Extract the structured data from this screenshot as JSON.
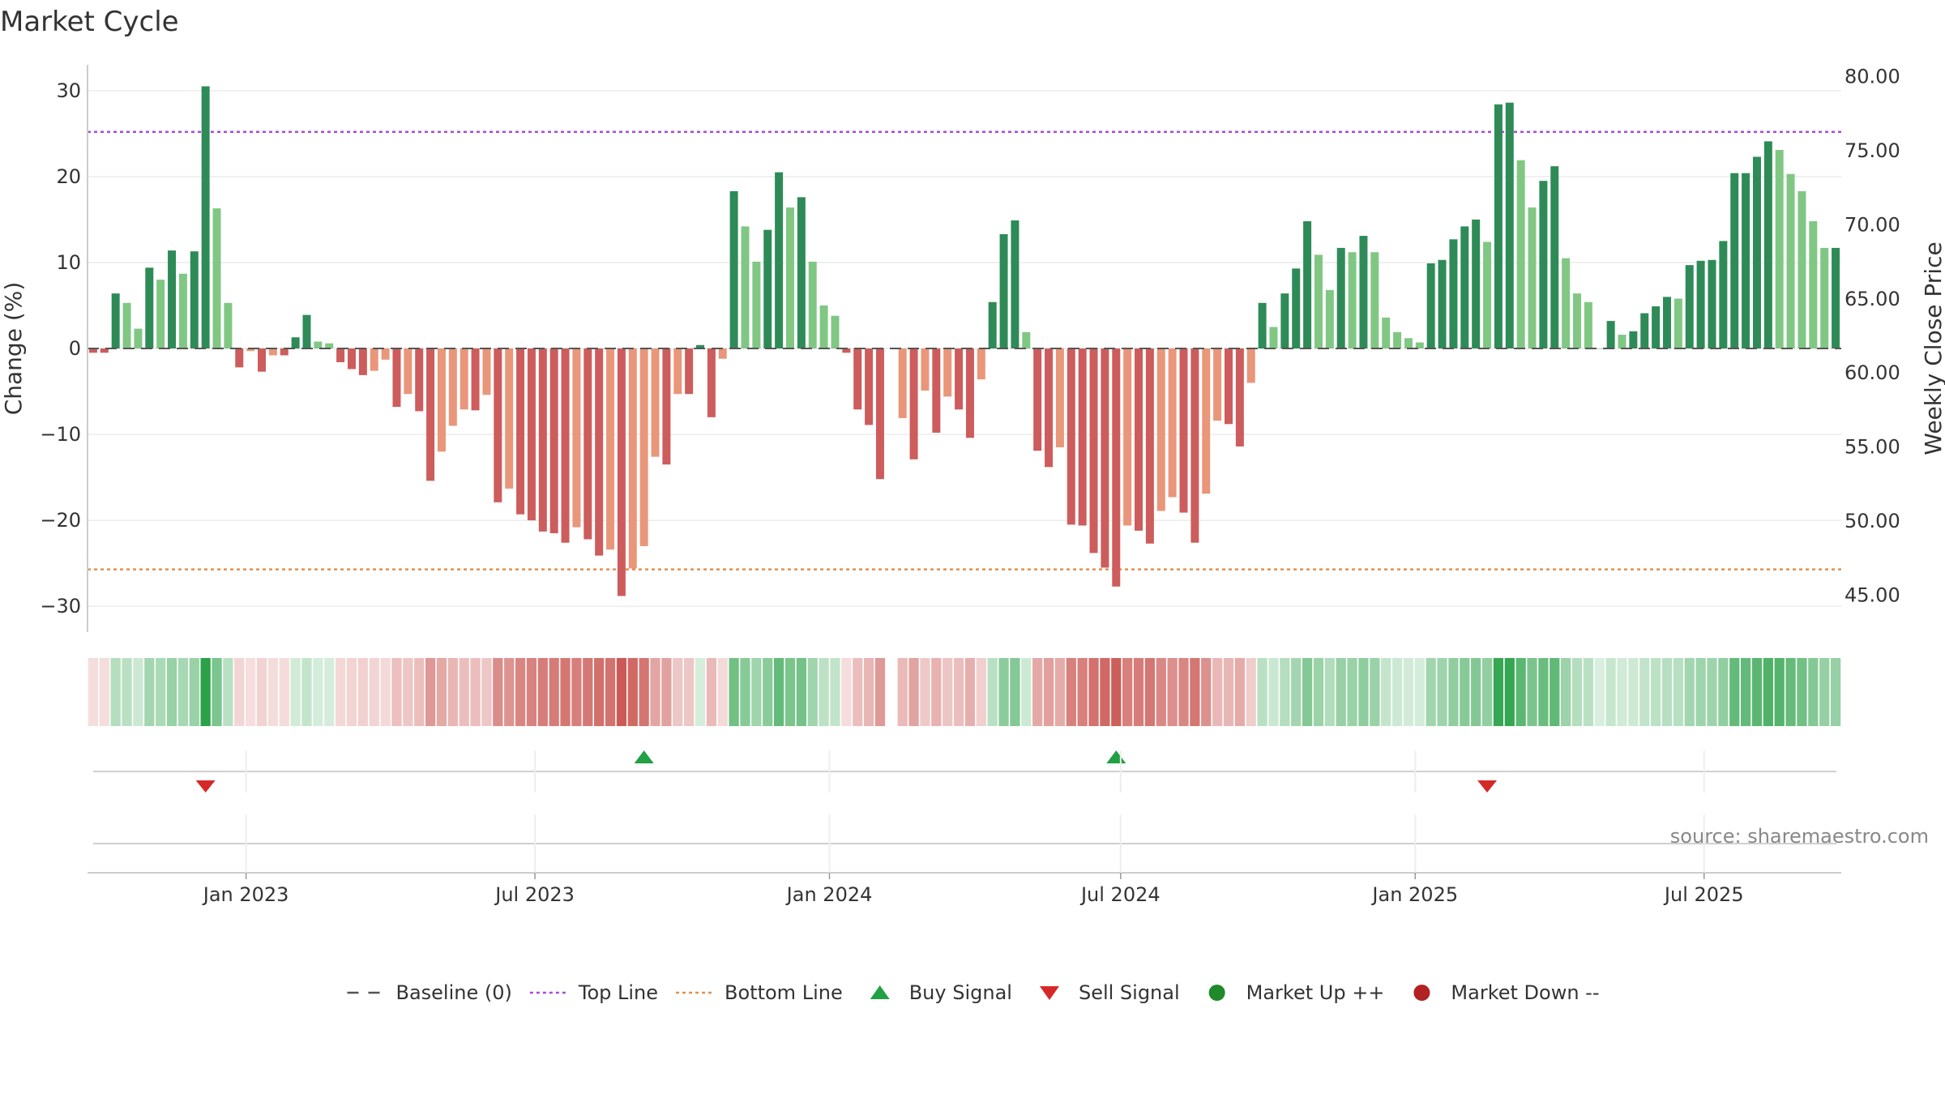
{
  "chart_data": {
    "type": "bar",
    "title": "Market Cycle",
    "ylabel": "Change (%)",
    "y2label": "Weekly Close Price",
    "ylim": [
      -33,
      33
    ],
    "y_ticks": [
      30,
      20,
      10,
      0,
      -10,
      -20,
      -30
    ],
    "y_tick_labels": [
      "30",
      "20",
      "10",
      "0",
      "−10",
      "−20",
      "−30"
    ],
    "y2lim": [
      42.5,
      80.8
    ],
    "y2_ticks": [
      80,
      75,
      70,
      65,
      60,
      55,
      50,
      45
    ],
    "y2_tick_labels": [
      "80.00",
      "75.00",
      "70.00",
      "65.00",
      "60.00",
      "55.00",
      "50.00",
      "45.00"
    ],
    "top_line": 25.2,
    "bottom_line": -25.7,
    "baseline": 0,
    "x_week_range": [
      -7.5,
      148.5
    ],
    "x_ticks": [
      {
        "label": "Jan 2023",
        "week": 6.6
      },
      {
        "label": "Jul 2023",
        "week": 32.3
      },
      {
        "label": "Jan 2024",
        "week": 58.5
      },
      {
        "label": "Jul 2024",
        "week": 84.4
      },
      {
        "label": "Jan 2025",
        "week": 110.6
      },
      {
        "label": "Jul 2025",
        "week": 136.3
      }
    ],
    "start_week": -7,
    "missing_weeks": [
      64
    ],
    "values": [
      -0.5,
      -0.5,
      6.4,
      5.3,
      2.3,
      9.4,
      8.0,
      11.4,
      8.7,
      11.3,
      30.5,
      16.3,
      5.3,
      -2.2,
      -0.3,
      -2.7,
      -0.8,
      -0.8,
      1.3,
      3.9,
      0.8,
      0.6,
      -1.6,
      -2.4,
      -3.1,
      -2.6,
      -1.3,
      -6.8,
      -5.3,
      -7.3,
      -15.4,
      -12.0,
      -9.0,
      -7.1,
      -7.2,
      -5.4,
      -17.9,
      -16.3,
      -19.3,
      -20.0,
      -21.3,
      -21.5,
      -22.6,
      -20.8,
      -22.2,
      -24.1,
      -23.4,
      -28.8,
      -25.6,
      -23.0,
      -12.6,
      -13.5,
      -5.3,
      -5.3,
      0.4,
      -8.0,
      -1.2,
      18.3,
      14.2,
      10.1,
      13.8,
      20.5,
      16.4,
      17.6,
      10.1,
      5.0,
      3.8,
      -0.5,
      -7.1,
      -8.9,
      -15.2,
      -8.1,
      -12.9,
      -4.9,
      -9.8,
      -5.6,
      -7.1,
      -10.4,
      -3.6,
      5.4,
      13.3,
      14.9,
      1.9,
      -11.9,
      -13.8,
      -11.5,
      -20.5,
      -20.6,
      -23.8,
      -25.5,
      -27.7,
      -20.6,
      -21.2,
      -22.7,
      -18.9,
      -17.3,
      -19.1,
      -22.6,
      -16.9,
      -8.4,
      -8.8,
      -11.4,
      -4.0,
      5.3,
      2.5,
      6.4,
      9.3,
      14.8,
      10.9,
      6.8,
      11.7,
      11.2,
      13.1,
      11.2,
      3.6,
      1.9,
      1.2,
      0.7,
      9.9,
      10.3,
      12.7,
      14.2,
      15.0,
      12.4,
      28.4,
      28.6,
      21.9,
      16.4,
      19.5,
      21.2,
      10.5,
      6.4,
      5.4,
      0.0,
      3.2,
      1.6,
      2.0,
      4.1,
      4.9,
      6.0,
      5.8,
      9.7,
      10.2,
      10.3,
      12.5,
      20.4,
      20.4,
      22.3,
      24.1,
      23.1,
      20.3,
      18.3,
      14.8,
      11.7,
      11.7
    ],
    "buy_signal_weeks": [
      42,
      84
    ],
    "sell_signal_weeks": [
      3,
      117
    ],
    "source": "source: sharemaestro.com",
    "legend": [
      {
        "label": "Baseline (0)",
        "symbol": "dash",
        "color": "#555555"
      },
      {
        "label": "Top Line",
        "symbol": "dotted",
        "color": "#a64dd6"
      },
      {
        "label": "Bottom Line",
        "symbol": "dotted",
        "color": "#e09050"
      },
      {
        "label": "Buy Signal",
        "symbol": "triangle-up",
        "color": "#22a045"
      },
      {
        "label": "Sell Signal",
        "symbol": "triangle-down",
        "color": "#d62828"
      },
      {
        "label": "Market Up ++",
        "symbol": "circle",
        "color": "#1e8a2a"
      },
      {
        "label": "Market Down --",
        "symbol": "circle",
        "color": "#b22222"
      }
    ],
    "colors": {
      "strong_up": "#2e8b57",
      "mild_up": "#81c784",
      "strong_down": "#cd5c5c",
      "mild_down": "#e9967a",
      "top_line": "#a64dd6",
      "bottom_line": "#e09050",
      "buy": "#22a045",
      "sell": "#d62828"
    }
  }
}
